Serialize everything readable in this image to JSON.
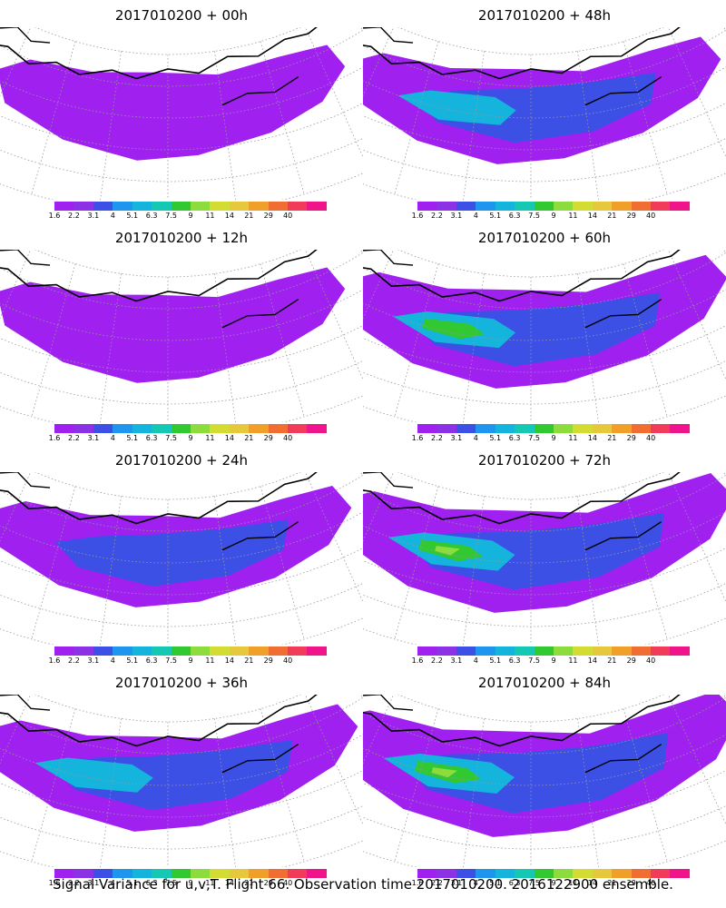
{
  "caption": "Signal Variance for u,v,T. Flight 66. Observation time 2017010200. 2016122900 ensemble.",
  "colorbar": {
    "labels": [
      "1.6",
      "2.2",
      "3.1",
      "4",
      "5.1",
      "6.3",
      "7.5",
      "9",
      "11",
      "14",
      "21",
      "29",
      "40"
    ],
    "colors": [
      "#a020f0",
      "#8c32e6",
      "#3c50e6",
      "#1e96f0",
      "#14b4dc",
      "#14c8b4",
      "#32c832",
      "#8cdc3c",
      "#d2dc32",
      "#e6c83c",
      "#f0a028",
      "#f06e32",
      "#f03c5a",
      "#f0148c"
    ]
  },
  "panels": [
    {
      "title": "2017010200 + 00h",
      "level": 0
    },
    {
      "title": "2017010200 + 48h",
      "level": 2
    },
    {
      "title": "2017010200 + 12h",
      "level": 0
    },
    {
      "title": "2017010200 + 60h",
      "level": 3
    },
    {
      "title": "2017010200 + 24h",
      "level": 1
    },
    {
      "title": "2017010200 + 72h",
      "level": 4
    },
    {
      "title": "2017010200 + 36h",
      "level": 2
    },
    {
      "title": "2017010200 + 84h",
      "level": 5
    }
  ]
}
